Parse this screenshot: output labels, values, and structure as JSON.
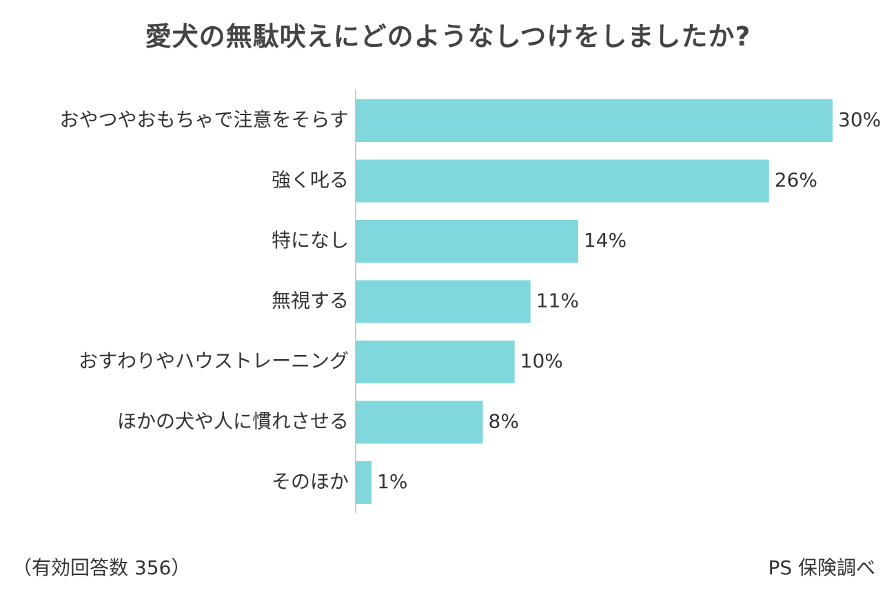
{
  "chart_data": {
    "type": "bar",
    "orientation": "horizontal",
    "title": "愛犬の無駄吠えにどのようなしつけをしましたか?",
    "categories": [
      "おやつやおもちゃで注意をそらす",
      "強く叱る",
      "特になし",
      "無視する",
      "おすわりやハウストレーニング",
      "ほかの犬や人に慣れさせる",
      "そのほか"
    ],
    "values": [
      30,
      26,
      14,
      11,
      10,
      8,
      1
    ],
    "value_labels": [
      "30%",
      "26%",
      "14%",
      "11%",
      "10%",
      "8%",
      "1%"
    ],
    "unit": "%",
    "xlim": [
      0,
      30
    ],
    "bar_color": "#80d8dc",
    "axis_color": "#bbbbbb",
    "grid": false
  },
  "footer": {
    "respondents": "（有効回答数 356）",
    "source": "PS 保険調べ"
  }
}
